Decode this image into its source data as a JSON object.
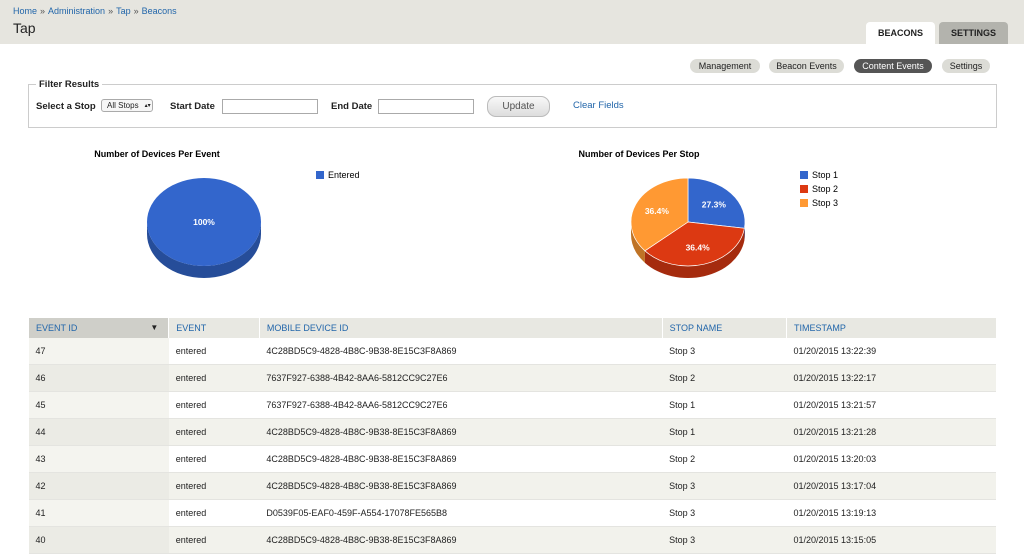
{
  "breadcrumb": {
    "items": [
      "Home",
      "Administration",
      "Tap",
      "Beacons"
    ],
    "separator": "»"
  },
  "title": "Tap",
  "tabs": [
    "BEACONS",
    "SETTINGS"
  ],
  "subnav": [
    "Management",
    "Beacon Events",
    "Content Events",
    "Settings"
  ],
  "filter": {
    "legend": "Filter Results",
    "stop_label": "Select a Stop",
    "stop_value": "All Stops",
    "start_label": "Start Date",
    "end_label": "End Date",
    "update": "Update",
    "clear": "Clear Fields"
  },
  "charts": [
    {
      "type": "pie",
      "title": "Number of Devices Per Event",
      "categories": [
        "Entered"
      ],
      "values": [
        100
      ],
      "value_labels": [
        "100%"
      ],
      "colors": [
        "#3366cc"
      ]
    },
    {
      "type": "pie",
      "title": "Number of Devices Per Stop",
      "categories": [
        "Stop 1",
        "Stop 2",
        "Stop 3"
      ],
      "values": [
        27.3,
        36.4,
        36.4
      ],
      "value_labels": [
        "27.3%",
        "36.4%",
        "36.4%"
      ],
      "colors": [
        "#3366cc",
        "#dc3912",
        "#ff9933"
      ]
    }
  ],
  "table": {
    "columns": [
      "EVENT ID",
      "EVENT",
      "MOBILE DEVICE ID",
      "STOP NAME",
      "TIMESTAMP"
    ],
    "rows": [
      [
        47,
        "entered",
        "4C28BD5C9-4828-4B8C-9B38-8E15C3F8A869",
        "Stop 3",
        "01/20/2015 13:22:39"
      ],
      [
        46,
        "entered",
        "7637F927-6388-4B42-8AA6-5812CC9C27E6",
        "Stop 2",
        "01/20/2015 13:22:17"
      ],
      [
        45,
        "entered",
        "7637F927-6388-4B42-8AA6-5812CC9C27E6",
        "Stop 1",
        "01/20/2015 13:21:57"
      ],
      [
        44,
        "entered",
        "4C28BD5C9-4828-4B8C-9B38-8E15C3F8A869",
        "Stop 1",
        "01/20/2015 13:21:28"
      ],
      [
        43,
        "entered",
        "4C28BD5C9-4828-4B8C-9B38-8E15C3F8A869",
        "Stop 2",
        "01/20/2015 13:20:03"
      ],
      [
        42,
        "entered",
        "4C28BD5C9-4828-4B8C-9B38-8E15C3F8A869",
        "Stop 3",
        "01/20/2015 13:17:04"
      ],
      [
        41,
        "entered",
        "D0539F05-EAF0-459F-A554-17078FE565B8",
        "Stop 3",
        "01/20/2015 13:19:13"
      ],
      [
        40,
        "entered",
        "4C28BD5C9-4828-4B8C-9B38-8E15C3F8A869",
        "Stop 3",
        "01/20/2015 13:15:05"
      ]
    ]
  }
}
